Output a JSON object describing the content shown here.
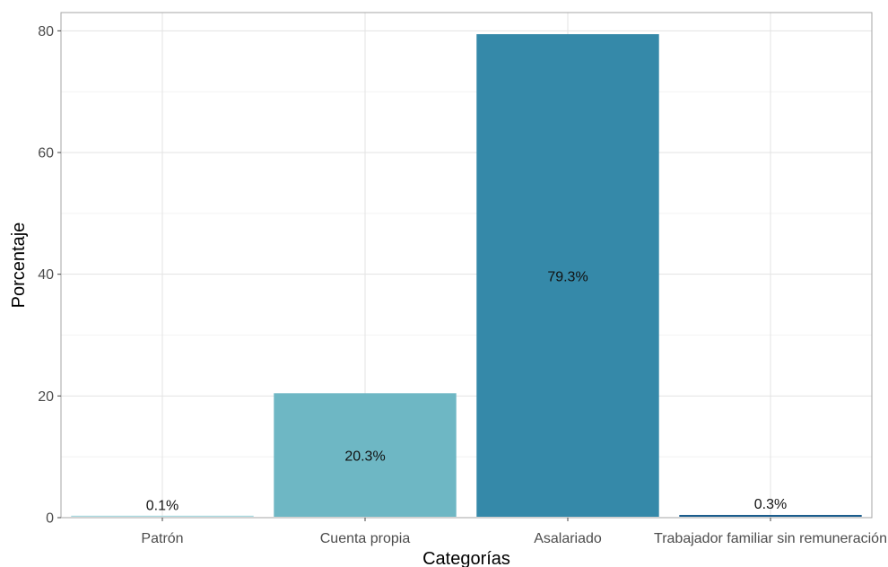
{
  "chart_data": {
    "type": "bar",
    "xlabel": "Categorías",
    "ylabel": "Porcentaje",
    "categories": [
      "Patrón",
      "Cuenta propia",
      "Asalariado",
      "Trabajador familiar sin remuneración"
    ],
    "values": [
      0.1,
      20.3,
      79.3,
      0.3
    ],
    "data_labels": [
      "0.1%",
      "20.3%",
      "79.3%",
      "0.3%"
    ],
    "colors": [
      "#a9dae0",
      "#6eb7c4",
      "#3589a9",
      "#1c5d8d"
    ],
    "ylim": [
      0,
      83
    ],
    "yticks": [
      0,
      20,
      40,
      60,
      80
    ],
    "ytick_labels": [
      "0",
      "20",
      "40",
      "60",
      "80"
    ],
    "grid": true,
    "legend": "none"
  }
}
